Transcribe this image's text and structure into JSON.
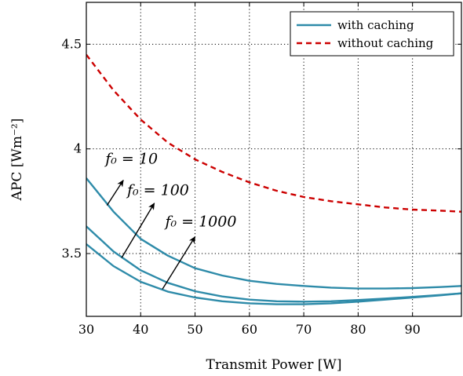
{
  "chart_data": {
    "type": "line",
    "xlabel": "Transmit Power [W]",
    "ylabel": "APC [Wm⁻²]",
    "xlim": [
      30,
      99
    ],
    "ylim": [
      3.2,
      4.7
    ],
    "xticks": [
      30,
      40,
      50,
      60,
      70,
      80,
      90
    ],
    "yticks": [
      3.5,
      4,
      4.5
    ],
    "ytick_labels": [
      "3.5",
      "4",
      "4.5"
    ],
    "grid": true,
    "legend_position": "top-right",
    "legend": [
      {
        "label": "with caching",
        "color": "#2e8ba9",
        "style": "solid"
      },
      {
        "label": "without caching",
        "color": "#cc0000",
        "style": "dashed"
      }
    ],
    "series": [
      {
        "name": "without caching",
        "legend": "without caching",
        "color": "#cc0000",
        "style": "dashed",
        "x": [
          30,
          35,
          40,
          45,
          50,
          55,
          60,
          65,
          70,
          75,
          80,
          85,
          90,
          95,
          99
        ],
        "y": [
          4.45,
          4.28,
          4.14,
          4.03,
          3.95,
          3.89,
          3.84,
          3.8,
          3.77,
          3.75,
          3.735,
          3.72,
          3.71,
          3.705,
          3.7
        ]
      },
      {
        "name": "f0 = 10",
        "legend": "with caching",
        "color": "#2e8ba9",
        "style": "solid",
        "x": [
          30,
          35,
          40,
          45,
          50,
          55,
          60,
          65,
          70,
          75,
          80,
          85,
          90,
          95,
          99
        ],
        "y": [
          3.86,
          3.7,
          3.57,
          3.49,
          3.43,
          3.395,
          3.37,
          3.355,
          3.345,
          3.337,
          3.333,
          3.333,
          3.335,
          3.34,
          3.345
        ]
      },
      {
        "name": "f0 = 100",
        "legend": "with caching",
        "color": "#2e8ba9",
        "style": "solid",
        "x": [
          30,
          35,
          40,
          45,
          50,
          55,
          60,
          65,
          70,
          75,
          80,
          85,
          90,
          95,
          99
        ],
        "y": [
          3.63,
          3.51,
          3.42,
          3.36,
          3.32,
          3.295,
          3.28,
          3.272,
          3.27,
          3.272,
          3.278,
          3.285,
          3.293,
          3.302,
          3.31
        ]
      },
      {
        "name": "f0 = 1000",
        "legend": "with caching",
        "color": "#2e8ba9",
        "style": "solid",
        "x": [
          30,
          35,
          40,
          45,
          50,
          55,
          60,
          65,
          70,
          75,
          80,
          85,
          90,
          95,
          99
        ],
        "y": [
          3.545,
          3.44,
          3.365,
          3.318,
          3.29,
          3.272,
          3.262,
          3.258,
          3.258,
          3.262,
          3.27,
          3.28,
          3.29,
          3.3,
          3.31
        ]
      }
    ],
    "annotations": [
      {
        "text": "f₀ = 10",
        "arrow_from": [
          33.8,
          3.73
        ],
        "arrow_to": [
          36.8,
          3.85
        ],
        "text_at": [
          33.5,
          3.93
        ]
      },
      {
        "text": "f₀ = 100",
        "arrow_from": [
          36.5,
          3.48
        ],
        "arrow_to": [
          42.5,
          3.74
        ],
        "text_at": [
          37.5,
          3.78
        ]
      },
      {
        "text": "f₀ = 1000",
        "arrow_from": [
          44.0,
          3.33
        ],
        "arrow_to": [
          50.0,
          3.58
        ],
        "text_at": [
          44.5,
          3.63
        ]
      }
    ]
  }
}
